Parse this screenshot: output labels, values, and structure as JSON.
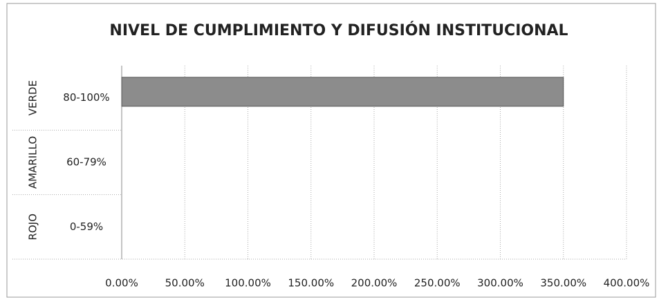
{
  "chart_data": {
    "type": "bar",
    "orientation": "horizontal",
    "title": "NIVEL DE CUMPLIMIENTO Y DIFUSIÓN INSTITUCIONAL",
    "groups": [
      "VERDE",
      "AMARILLO",
      "ROJO"
    ],
    "categories": [
      "80-100%",
      "60-79%",
      "0-59%"
    ],
    "values": [
      350,
      0,
      0
    ],
    "color": "#8c8c8c",
    "xlim": [
      0,
      400
    ],
    "xticks": [
      {
        "value": 0,
        "label": "0.00%"
      },
      {
        "value": 50,
        "label": "50.00%"
      },
      {
        "value": 100,
        "label": "100.00%"
      },
      {
        "value": 150,
        "label": "150.00%"
      },
      {
        "value": 200,
        "label": "200.00%"
      },
      {
        "value": 250,
        "label": "250.00%"
      },
      {
        "value": 300,
        "label": "300.00%"
      },
      {
        "value": 350,
        "label": "350.00%"
      },
      {
        "value": 400,
        "label": "400.00%"
      }
    ],
    "grid": true
  }
}
